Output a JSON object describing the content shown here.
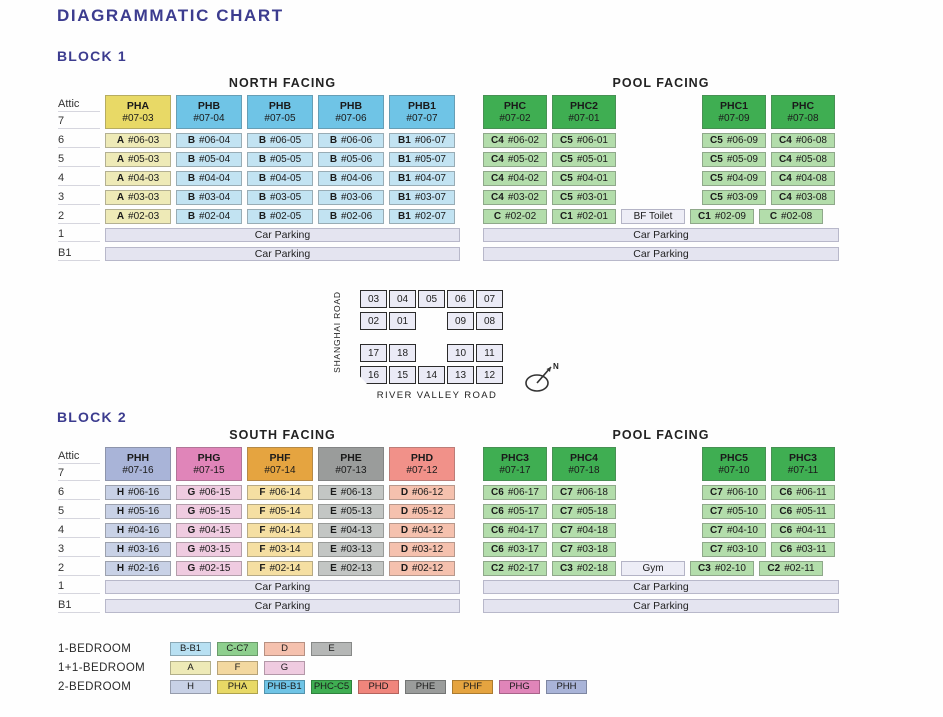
{
  "page": {
    "title": "DIAGRAMMATIC CHART"
  },
  "colors": {
    "pha": "#e8d966",
    "a": "#eeeab7",
    "phb": "#6fc4e6",
    "b": "#c2e3f2",
    "phc": "#3fae52",
    "c": "#b3ddab",
    "phh": "#a9b4d8",
    "h": "#c8d1e6",
    "phg": "#e085b9",
    "g": "#efcbe0",
    "phf": "#e5a440",
    "f": "#f5dfa2",
    "phe": "#9a9c9b",
    "e": "#c3c6c4",
    "phd": "#f19189",
    "d": "#f5c1ae"
  },
  "block1": {
    "label": "BLOCK 1",
    "north": {
      "title": "NORTH FACING",
      "attic_label": "Attic",
      "top_floor_label": "7",
      "headers": [
        {
          "name": "PHA",
          "unit": "#07-03",
          "color": "pha"
        },
        {
          "name": "PHB",
          "unit": "#07-04",
          "color": "phb"
        },
        {
          "name": "PHB",
          "unit": "#07-05",
          "color": "phb"
        },
        {
          "name": "PHB",
          "unit": "#07-06",
          "color": "phb"
        },
        {
          "name": "PHB1",
          "unit": "#07-07",
          "color": "phb"
        }
      ],
      "floors": [
        {
          "label": "6",
          "cells": [
            {
              "p": "A",
              "u": "#06-03",
              "color": "a"
            },
            {
              "p": "B",
              "u": "#06-04",
              "color": "b"
            },
            {
              "p": "B",
              "u": "#06-05",
              "color": "b"
            },
            {
              "p": "B",
              "u": "#06-06",
              "color": "b"
            },
            {
              "p": "B1",
              "u": "#06-07",
              "color": "b"
            }
          ]
        },
        {
          "label": "5",
          "cells": [
            {
              "p": "A",
              "u": "#05-03",
              "color": "a"
            },
            {
              "p": "B",
              "u": "#05-04",
              "color": "b"
            },
            {
              "p": "B",
              "u": "#05-05",
              "color": "b"
            },
            {
              "p": "B",
              "u": "#05-06",
              "color": "b"
            },
            {
              "p": "B1",
              "u": "#05-07",
              "color": "b"
            }
          ]
        },
        {
          "label": "4",
          "cells": [
            {
              "p": "A",
              "u": "#04-03",
              "color": "a"
            },
            {
              "p": "B",
              "u": "#04-04",
              "color": "b"
            },
            {
              "p": "B",
              "u": "#04-05",
              "color": "b"
            },
            {
              "p": "B",
              "u": "#04-06",
              "color": "b"
            },
            {
              "p": "B1",
              "u": "#04-07",
              "color": "b"
            }
          ]
        },
        {
          "label": "3",
          "cells": [
            {
              "p": "A",
              "u": "#03-03",
              "color": "a"
            },
            {
              "p": "B",
              "u": "#03-04",
              "color": "b"
            },
            {
              "p": "B",
              "u": "#03-05",
              "color": "b"
            },
            {
              "p": "B",
              "u": "#03-06",
              "color": "b"
            },
            {
              "p": "B1",
              "u": "#03-07",
              "color": "b"
            }
          ]
        },
        {
          "label": "2",
          "cells": [
            {
              "p": "A",
              "u": "#02-03",
              "color": "a"
            },
            {
              "p": "B",
              "u": "#02-04",
              "color": "b"
            },
            {
              "p": "B",
              "u": "#02-05",
              "color": "b"
            },
            {
              "p": "B",
              "u": "#02-06",
              "color": "b"
            },
            {
              "p": "B1",
              "u": "#02-07",
              "color": "b"
            }
          ]
        }
      ],
      "parking": [
        {
          "label": "1",
          "text": "Car Parking"
        },
        {
          "label": "B1",
          "text": "Car Parking"
        }
      ]
    },
    "pool": {
      "title": "POOL FACING",
      "headers": [
        {
          "name": "PHC",
          "unit": "#07-02",
          "color": "phc"
        },
        {
          "name": "PHC2",
          "unit": "#07-01",
          "color": "phc"
        },
        {
          "gap": true
        },
        {
          "name": "PHC1",
          "unit": "#07-09",
          "color": "phc"
        },
        {
          "name": "PHC",
          "unit": "#07-08",
          "color": "phc"
        }
      ],
      "floors": [
        {
          "label": "6",
          "cells": [
            {
              "p": "C4",
              "u": "#06-02",
              "color": "c"
            },
            {
              "p": "C5",
              "u": "#06-01",
              "color": "c"
            },
            {
              "gap": true
            },
            {
              "p": "C5",
              "u": "#06-09",
              "color": "c"
            },
            {
              "p": "C4",
              "u": "#06-08",
              "color": "c"
            }
          ]
        },
        {
          "label": "5",
          "cells": [
            {
              "p": "C4",
              "u": "#05-02",
              "color": "c"
            },
            {
              "p": "C5",
              "u": "#05-01",
              "color": "c"
            },
            {
              "gap": true
            },
            {
              "p": "C5",
              "u": "#05-09",
              "color": "c"
            },
            {
              "p": "C4",
              "u": "#05-08",
              "color": "c"
            }
          ]
        },
        {
          "label": "4",
          "cells": [
            {
              "p": "C4",
              "u": "#04-02",
              "color": "c"
            },
            {
              "p": "C5",
              "u": "#04-01",
              "color": "c"
            },
            {
              "gap": true
            },
            {
              "p": "C5",
              "u": "#04-09",
              "color": "c"
            },
            {
              "p": "C4",
              "u": "#04-08",
              "color": "c"
            }
          ]
        },
        {
          "label": "3",
          "cells": [
            {
              "p": "C4",
              "u": "#03-02",
              "color": "c"
            },
            {
              "p": "C5",
              "u": "#03-01",
              "color": "c"
            },
            {
              "gap": true
            },
            {
              "p": "C5",
              "u": "#03-09",
              "color": "c"
            },
            {
              "p": "C4",
              "u": "#03-08",
              "color": "c"
            }
          ]
        },
        {
          "label": "2",
          "cells": [
            {
              "p": "C",
              "u": "#02-02",
              "color": "c"
            },
            {
              "p": "C1",
              "u": "#02-01",
              "color": "c"
            },
            {
              "amenity": "BF Toilet"
            },
            {
              "p": "C1",
              "u": "#02-09",
              "color": "c"
            },
            {
              "p": "C",
              "u": "#02-08",
              "color": "c"
            }
          ]
        }
      ],
      "parking": [
        {
          "text": "Car Parking"
        },
        {
          "text": "Car Parking"
        }
      ]
    }
  },
  "block2": {
    "label": "BLOCK 2",
    "south": {
      "title": "SOUTH FACING",
      "attic_label": "Attic",
      "top_floor_label": "7",
      "headers": [
        {
          "name": "PHH",
          "unit": "#07-16",
          "color": "phh"
        },
        {
          "name": "PHG",
          "unit": "#07-15",
          "color": "phg"
        },
        {
          "name": "PHF",
          "unit": "#07-14",
          "color": "phf"
        },
        {
          "name": "PHE",
          "unit": "#07-13",
          "color": "phe"
        },
        {
          "name": "PHD",
          "unit": "#07-12",
          "color": "phd"
        }
      ],
      "floors": [
        {
          "label": "6",
          "cells": [
            {
              "p": "H",
              "u": "#06-16",
              "color": "h"
            },
            {
              "p": "G",
              "u": "#06-15",
              "color": "g"
            },
            {
              "p": "F",
              "u": "#06-14",
              "color": "f"
            },
            {
              "p": "E",
              "u": "#06-13",
              "color": "e"
            },
            {
              "p": "D",
              "u": "#06-12",
              "color": "d"
            }
          ]
        },
        {
          "label": "5",
          "cells": [
            {
              "p": "H",
              "u": "#05-16",
              "color": "h"
            },
            {
              "p": "G",
              "u": "#05-15",
              "color": "g"
            },
            {
              "p": "F",
              "u": "#05-14",
              "color": "f"
            },
            {
              "p": "E",
              "u": "#05-13",
              "color": "e"
            },
            {
              "p": "D",
              "u": "#05-12",
              "color": "d"
            }
          ]
        },
        {
          "label": "4",
          "cells": [
            {
              "p": "H",
              "u": "#04-16",
              "color": "h"
            },
            {
              "p": "G",
              "u": "#04-15",
              "color": "g"
            },
            {
              "p": "F",
              "u": "#04-14",
              "color": "f"
            },
            {
              "p": "E",
              "u": "#04-13",
              "color": "e"
            },
            {
              "p": "D",
              "u": "#04-12",
              "color": "d"
            }
          ]
        },
        {
          "label": "3",
          "cells": [
            {
              "p": "H",
              "u": "#03-16",
              "color": "h"
            },
            {
              "p": "G",
              "u": "#03-15",
              "color": "g"
            },
            {
              "p": "F",
              "u": "#03-14",
              "color": "f"
            },
            {
              "p": "E",
              "u": "#03-13",
              "color": "e"
            },
            {
              "p": "D",
              "u": "#03-12",
              "color": "d"
            }
          ]
        },
        {
          "label": "2",
          "cells": [
            {
              "p": "H",
              "u": "#02-16",
              "color": "h"
            },
            {
              "p": "G",
              "u": "#02-15",
              "color": "g"
            },
            {
              "p": "F",
              "u": "#02-14",
              "color": "f"
            },
            {
              "p": "E",
              "u": "#02-13",
              "color": "e"
            },
            {
              "p": "D",
              "u": "#02-12",
              "color": "d"
            }
          ]
        }
      ],
      "parking": [
        {
          "label": "1",
          "text": "Car Parking"
        },
        {
          "label": "B1",
          "text": "Car Parking"
        }
      ]
    },
    "pool": {
      "title": "POOL FACING",
      "headers": [
        {
          "name": "PHC3",
          "unit": "#07-17",
          "color": "phc"
        },
        {
          "name": "PHC4",
          "unit": "#07-18",
          "color": "phc"
        },
        {
          "gap": true
        },
        {
          "name": "PHC5",
          "unit": "#07-10",
          "color": "phc"
        },
        {
          "name": "PHC3",
          "unit": "#07-11",
          "color": "phc"
        }
      ],
      "floors": [
        {
          "label": "6",
          "cells": [
            {
              "p": "C6",
              "u": "#06-17",
              "color": "c"
            },
            {
              "p": "C7",
              "u": "#06-18",
              "color": "c"
            },
            {
              "gap": true
            },
            {
              "p": "C7",
              "u": "#06-10",
              "color": "c"
            },
            {
              "p": "C6",
              "u": "#06-11",
              "color": "c"
            }
          ]
        },
        {
          "label": "5",
          "cells": [
            {
              "p": "C6",
              "u": "#05-17",
              "color": "c"
            },
            {
              "p": "C7",
              "u": "#05-18",
              "color": "c"
            },
            {
              "gap": true
            },
            {
              "p": "C7",
              "u": "#05-10",
              "color": "c"
            },
            {
              "p": "C6",
              "u": "#05-11",
              "color": "c"
            }
          ]
        },
        {
          "label": "4",
          "cells": [
            {
              "p": "C6",
              "u": "#04-17",
              "color": "c"
            },
            {
              "p": "C7",
              "u": "#04-18",
              "color": "c"
            },
            {
              "gap": true
            },
            {
              "p": "C7",
              "u": "#04-10",
              "color": "c"
            },
            {
              "p": "C6",
              "u": "#04-11",
              "color": "c"
            }
          ]
        },
        {
          "label": "3",
          "cells": [
            {
              "p": "C6",
              "u": "#03-17",
              "color": "c"
            },
            {
              "p": "C7",
              "u": "#03-18",
              "color": "c"
            },
            {
              "gap": true
            },
            {
              "p": "C7",
              "u": "#03-10",
              "color": "c"
            },
            {
              "p": "C6",
              "u": "#03-11",
              "color": "c"
            }
          ]
        },
        {
          "label": "2",
          "cells": [
            {
              "p": "C2",
              "u": "#02-17",
              "color": "c"
            },
            {
              "p": "C3",
              "u": "#02-18",
              "color": "c"
            },
            {
              "amenity": "Gym"
            },
            {
              "p": "C3",
              "u": "#02-10",
              "color": "c"
            },
            {
              "p": "C2",
              "u": "#02-11",
              "color": "c"
            }
          ]
        }
      ],
      "parking": [
        {
          "text": "Car Parking"
        },
        {
          "text": "Car Parking"
        }
      ]
    }
  },
  "siteplan": {
    "left_road": "SHANGHAI ROAD",
    "bottom_road": "RIVER VALLEY ROAD",
    "compass_label": "N",
    "upper_block": {
      "row1": [
        "03",
        "04",
        "05",
        "06",
        "07"
      ],
      "row2": [
        "02",
        "01",
        null,
        "09",
        "08"
      ]
    },
    "lower_block": {
      "row1": [
        "17",
        "18",
        null,
        "10",
        "11"
      ],
      "row2": [
        "16",
        "15",
        "14",
        "13",
        "12"
      ]
    }
  },
  "legend": {
    "rows": [
      {
        "label": "1-BEDROOM",
        "items": [
          {
            "text": "B-B1",
            "color": "#b8e0f2"
          },
          {
            "text": "C-C7",
            "color": "#8ecf8e"
          },
          {
            "text": "D",
            "color": "#f5c1ae"
          },
          {
            "text": "E",
            "color": "#b5b7b6"
          }
        ]
      },
      {
        "label": "1+1-BEDROOM",
        "items": [
          {
            "text": "A",
            "color": "#eeeab7"
          },
          {
            "text": "F",
            "color": "#f3d8a0"
          },
          {
            "text": "G",
            "color": "#efcbe0"
          }
        ]
      },
      {
        "label": "2-BEDROOM",
        "items": [
          {
            "text": "H",
            "color": "#c8d1e6"
          },
          {
            "text": "PHA",
            "color": "#e8d966"
          },
          {
            "text": "PHB-B1",
            "color": "#6fc4e6"
          },
          {
            "text": "PHC-C5",
            "color": "#3fae52"
          },
          {
            "text": "PHD",
            "color": "#f0857c"
          },
          {
            "text": "PHE",
            "color": "#9a9c9b"
          },
          {
            "text": "PHF",
            "color": "#e5a440"
          },
          {
            "text": "PHG",
            "color": "#e085b9"
          },
          {
            "text": "PHH",
            "color": "#a9b4d8"
          }
        ]
      }
    ]
  }
}
